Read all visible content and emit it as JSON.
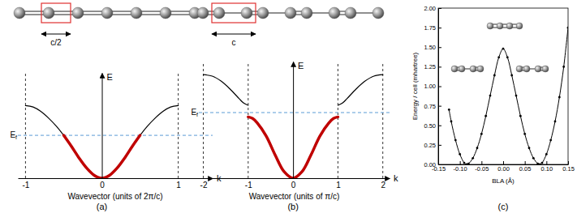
{
  "chart_data": [
    {
      "type": "line",
      "panel": "(a)",
      "lattice_label": "c/2",
      "xlabel": "Wavevector (units of 2π/c)",
      "x_symbol": "k",
      "ylabel": "E",
      "xlim": [
        -1.1,
        1.45
      ],
      "ylim": [
        0,
        1.45
      ],
      "xticks": [
        -1,
        0,
        1
      ],
      "tick_labels": "x",
      "vlines": [
        -1,
        1
      ],
      "fermi_level": {
        "label": "Ef",
        "value": 0.59
      },
      "series": [
        {
          "color": "#000000",
          "x": [
            -1,
            -0.9,
            -0.8,
            -0.7,
            -0.6,
            -0.5,
            -0.4,
            -0.3,
            -0.2,
            -0.1,
            0,
            0.1,
            0.2,
            0.3,
            0.4,
            0.5,
            0.6,
            0.7,
            0.8,
            0.9,
            1
          ],
          "values": [
            1.0,
            0.98,
            0.92,
            0.83,
            0.72,
            0.59,
            0.44,
            0.28,
            0.14,
            0.04,
            0,
            0.04,
            0.14,
            0.28,
            0.44,
            0.59,
            0.72,
            0.83,
            0.92,
            0.98,
            1.0
          ]
        },
        {
          "color": "#c00000",
          "x": [
            -0.5,
            -0.4,
            -0.3,
            -0.2,
            -0.1,
            0,
            0.1,
            0.2,
            0.3,
            0.4,
            0.5
          ],
          "values": [
            0.59,
            0.44,
            0.28,
            0.14,
            0.04,
            0,
            0.04,
            0.14,
            0.28,
            0.44,
            0.59
          ]
        }
      ]
    },
    {
      "type": "line",
      "panel": "(b)",
      "lattice_label": "c",
      "xlabel": "Wavevector (units of π/c)",
      "x_symbol": "k",
      "ylabel": "E",
      "xlim": [
        -2.1,
        2.15
      ],
      "ylim": [
        0,
        1.6
      ],
      "xticks": [
        -2,
        -1,
        0,
        1,
        2
      ],
      "tick_labels": "x",
      "vlines": [
        -2,
        -1,
        1,
        2
      ],
      "fermi_level": {
        "label": "Ef",
        "value": 0.9
      },
      "series": [
        {
          "color": "#000000",
          "x": [
            -2,
            -1.8,
            -1.6,
            -1.4,
            -1.2,
            -1.1,
            -1
          ],
          "values": [
            1.42,
            1.4,
            1.33,
            1.22,
            1.09,
            1.03,
            1.0
          ]
        },
        {
          "color": "#000000",
          "x": [
            1,
            1.1,
            1.2,
            1.4,
            1.6,
            1.8,
            2
          ],
          "values": [
            1.0,
            1.03,
            1.09,
            1.22,
            1.33,
            1.4,
            1.42
          ]
        },
        {
          "color": "#c00000",
          "x": [
            -1,
            -0.9,
            -0.8,
            -0.6,
            -0.4,
            -0.2,
            0,
            0.2,
            0.4,
            0.6,
            0.8,
            0.9,
            1
          ],
          "values": [
            0.84,
            0.82,
            0.76,
            0.58,
            0.32,
            0.09,
            0,
            0.09,
            0.32,
            0.58,
            0.76,
            0.82,
            0.84
          ]
        }
      ]
    },
    {
      "type": "line",
      "panel": "(c)",
      "xlabel": "BLA (Å)",
      "ylabel": "Energy / cell (mhartree)",
      "marker": "circle",
      "xlim": [
        -0.15,
        0.15
      ],
      "ylim": [
        0,
        2
      ],
      "xticks": [
        -0.15,
        {
          "value": -0.1,
          "label": "-0.10"
        },
        -0.05,
        {
          "value": 0,
          "label": "0.00"
        },
        0.05,
        {
          "value": 0.1,
          "label": "0.10"
        },
        0.15
      ],
      "yticks": [
        {
          "value": 0,
          "label": "0.00"
        },
        0.25,
        {
          "value": 0.5,
          "label": "0.50"
        },
        0.75,
        {
          "value": 1,
          "label": "1.00"
        },
        1.25,
        {
          "value": 1.5,
          "label": "1.50"
        },
        1.75,
        {
          "value": 2,
          "label": "2.00"
        }
      ],
      "series": [
        {
          "color": "#000000",
          "x": [
            -0.125,
            -0.12,
            -0.11,
            -0.1,
            -0.09,
            -0.085,
            -0.08,
            -0.07,
            -0.06,
            -0.05,
            -0.04,
            -0.03,
            -0.02,
            -0.01,
            0,
            0.01,
            0.02,
            0.03,
            0.04,
            0.05,
            0.06,
            0.07,
            0.08,
            0.085,
            0.09,
            0.1,
            0.11,
            0.12,
            0.13,
            0.14,
            0.15
          ],
          "values": [
            0.7,
            0.55,
            0.31,
            0.13,
            0.02,
            0,
            0.01,
            0.08,
            0.21,
            0.39,
            0.62,
            0.88,
            1.14,
            1.37,
            1.48,
            1.37,
            1.14,
            0.88,
            0.62,
            0.39,
            0.21,
            0.08,
            0.01,
            0,
            0.02,
            0.13,
            0.31,
            0.55,
            0.86,
            1.25,
            1.75
          ]
        }
      ]
    }
  ]
}
